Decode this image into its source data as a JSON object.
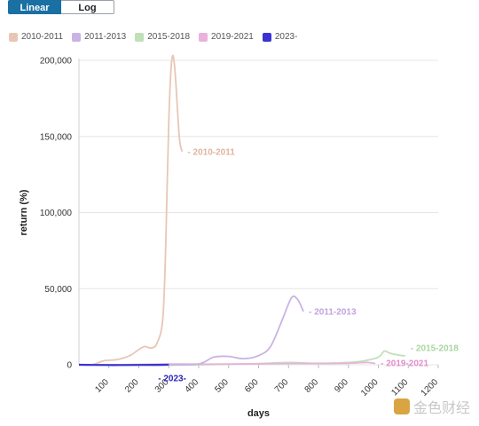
{
  "toggle": {
    "linear_label": "Linear",
    "log_label": "Log"
  },
  "legend": [
    {
      "name": "2010-2011",
      "color": "#e8c6b6"
    },
    {
      "name": "2011-2013",
      "color": "#c9b3e3"
    },
    {
      "name": "2015-2018",
      "color": "#bfe0b9"
    },
    {
      "name": "2019-2021",
      "color": "#eab1dc"
    },
    {
      "name": "2023-",
      "color": "#3b33d1"
    }
  ],
  "watermark": {
    "text": "金色财经"
  },
  "chart_data": {
    "type": "line",
    "xlabel": "days",
    "ylabel": "return (%)",
    "xlim": [
      0,
      1200
    ],
    "ylim": [
      0,
      200000
    ],
    "xticks": [
      100,
      200,
      300,
      400,
      500,
      600,
      700,
      800,
      900,
      1000,
      1100,
      1200
    ],
    "yticks": [
      0,
      50000,
      100000,
      150000,
      200000
    ],
    "ytick_labels": [
      "0",
      "50,000",
      "100,000",
      "150,000",
      "200,000"
    ],
    "grid": "horizontal",
    "series": [
      {
        "name": "2010-2011",
        "color": "#e8c6b6",
        "label_color": "#e0b49c",
        "points": [
          [
            0,
            0
          ],
          [
            40,
            0
          ],
          [
            60,
            1000
          ],
          [
            80,
            2500
          ],
          [
            100,
            3000
          ],
          [
            130,
            3500
          ],
          [
            170,
            6000
          ],
          [
            200,
            10000
          ],
          [
            220,
            12000
          ],
          [
            240,
            11000
          ],
          [
            260,
            14000
          ],
          [
            280,
            30000
          ],
          [
            290,
            80000
          ],
          [
            300,
            160000
          ],
          [
            310,
            200000
          ],
          [
            320,
            195000
          ],
          [
            335,
            150000
          ],
          [
            345,
            140000
          ]
        ]
      },
      {
        "name": "2011-2013",
        "color": "#c9b3e3",
        "label_color": "#c0a3df",
        "points": [
          [
            0,
            0
          ],
          [
            100,
            0
          ],
          [
            200,
            0
          ],
          [
            300,
            0
          ],
          [
            400,
            500
          ],
          [
            450,
            5000
          ],
          [
            500,
            5500
          ],
          [
            550,
            4000
          ],
          [
            600,
            6000
          ],
          [
            640,
            12000
          ],
          [
            680,
            30000
          ],
          [
            710,
            44000
          ],
          [
            730,
            43000
          ],
          [
            750,
            35000
          ]
        ]
      },
      {
        "name": "2015-2018",
        "color": "#bfe0b9",
        "label_color": "#a9d6a1",
        "points": [
          [
            0,
            0
          ],
          [
            100,
            -100
          ],
          [
            200,
            -200
          ],
          [
            300,
            -300
          ],
          [
            400,
            0
          ],
          [
            500,
            300
          ],
          [
            600,
            800
          ],
          [
            700,
            1500
          ],
          [
            800,
            1000
          ],
          [
            900,
            1500
          ],
          [
            950,
            2500
          ],
          [
            1000,
            5000
          ],
          [
            1020,
            9000
          ],
          [
            1040,
            7500
          ],
          [
            1080,
            6000
          ],
          [
            1090,
            6000
          ]
        ]
      },
      {
        "name": "2019-2021",
        "color": "#eab1dc",
        "label_color": "#e38dcf",
        "points": [
          [
            0,
            0
          ],
          [
            100,
            0
          ],
          [
            200,
            200
          ],
          [
            300,
            500
          ],
          [
            400,
            400
          ],
          [
            500,
            500
          ],
          [
            600,
            600
          ],
          [
            700,
            800
          ],
          [
            800,
            800
          ],
          [
            900,
            1000
          ],
          [
            960,
            1500
          ],
          [
            990,
            900
          ]
        ]
      },
      {
        "name": "2023-",
        "color": "#3b33d1",
        "label_color": "#2a22b8",
        "points": [
          [
            0,
            0
          ],
          [
            50,
            -100
          ],
          [
            100,
            -200
          ],
          [
            150,
            -150
          ],
          [
            200,
            -100
          ],
          [
            250,
            -50
          ],
          [
            290,
            0
          ],
          [
            300,
            100
          ]
        ]
      }
    ]
  }
}
